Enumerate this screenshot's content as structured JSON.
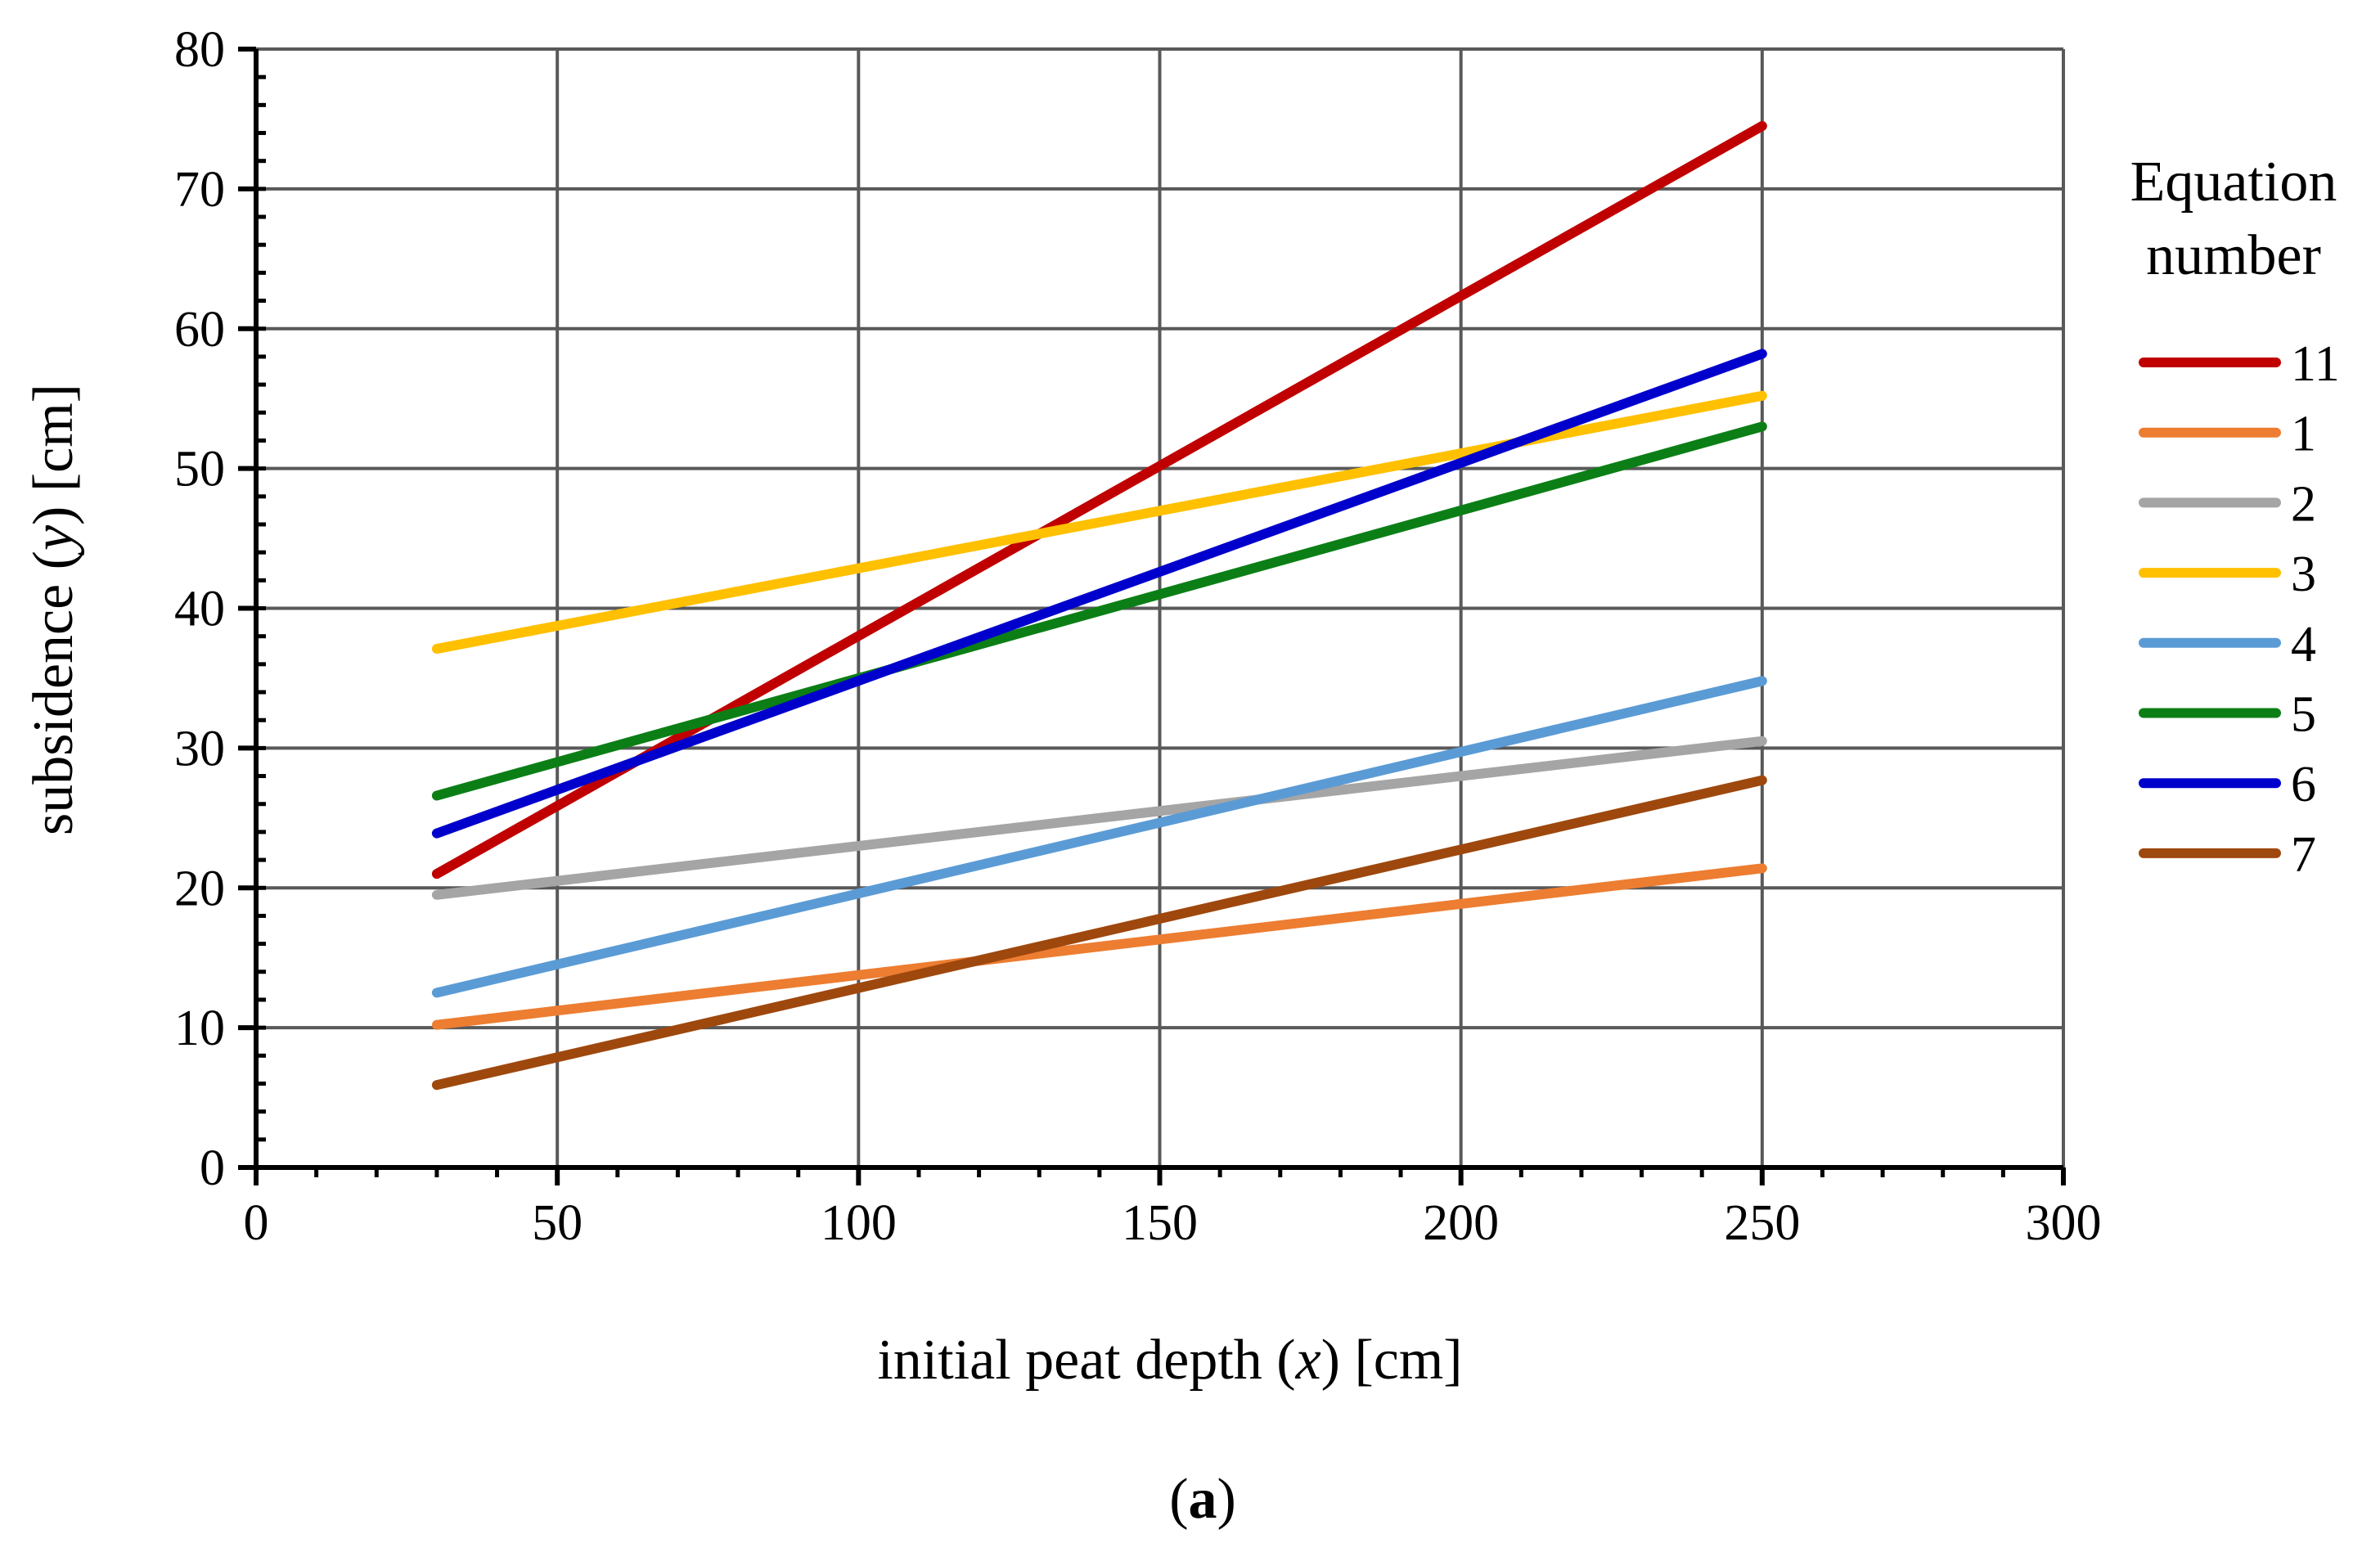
{
  "chart_data": {
    "type": "line",
    "xlabel": {
      "pre": "initial peat depth (",
      "var": "x",
      "post": ") [cm]"
    },
    "ylabel": {
      "pre": "subsidence (",
      "var": "y",
      "post": ") [cm]"
    },
    "xlim": [
      0,
      300
    ],
    "ylim": [
      0,
      80
    ],
    "xticks": [
      0,
      50,
      100,
      150,
      200,
      250,
      300
    ],
    "yticks": [
      0,
      10,
      20,
      30,
      40,
      50,
      60,
      70,
      80
    ],
    "grid": true,
    "legend": {
      "title_line1": "Equation",
      "title_line2": "number",
      "position": "right"
    },
    "caption": {
      "open": "(",
      "letter": "a",
      "close": ")"
    },
    "series": [
      {
        "name": "11",
        "color": "#C00000",
        "x": [
          30,
          250
        ],
        "y": [
          21.0,
          74.5
        ]
      },
      {
        "name": "1",
        "color": "#ED7D31",
        "x": [
          30,
          250
        ],
        "y": [
          10.2,
          21.4
        ]
      },
      {
        "name": "2",
        "color": "#A5A5A5",
        "x": [
          30,
          250
        ],
        "y": [
          19.5,
          30.5
        ]
      },
      {
        "name": "3",
        "color": "#FFC000",
        "x": [
          30,
          250
        ],
        "y": [
          37.1,
          55.2
        ]
      },
      {
        "name": "4",
        "color": "#5B9BD5",
        "x": [
          30,
          250
        ],
        "y": [
          12.5,
          34.8
        ]
      },
      {
        "name": "5",
        "color": "#0B7F16",
        "x": [
          30,
          250
        ],
        "y": [
          26.6,
          53.0
        ]
      },
      {
        "name": "6",
        "color": "#0000CC",
        "x": [
          30,
          250
        ],
        "y": [
          23.9,
          58.2
        ]
      },
      {
        "name": "7",
        "color": "#9E480E",
        "x": [
          30,
          250
        ],
        "y": [
          5.9,
          27.7
        ]
      }
    ]
  }
}
